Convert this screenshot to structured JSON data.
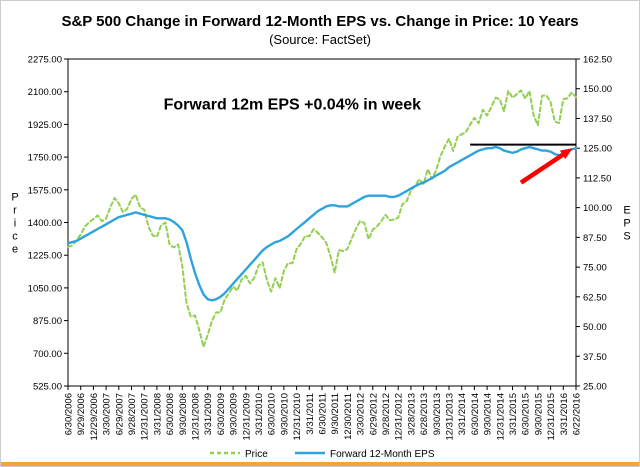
{
  "title": "S&P 500 Change in Forward 12-Month EPS vs. Change in Price: 10 Years",
  "subtitle": "(Source: FactSet)",
  "colors": {
    "price_line": "#92D050",
    "eps_line": "#2EA3DC",
    "annotation_red": "#FF0000",
    "flat_line_black": "#000000",
    "bottom_accent": "#f2a33c"
  },
  "chart_data": {
    "type": "line",
    "title": "S&P 500 Change in Forward 12-Month EPS vs. Change in Price: 10 Years",
    "subtitle": "(Source: FactSet)",
    "grid": false,
    "legend_position": "bottom",
    "left_axis": {
      "label": "Price",
      "min": 525,
      "max": 2275,
      "step": 175
    },
    "right_axis": {
      "label": "EPS",
      "min": 25,
      "max": 162.5,
      "step": 12.5
    },
    "x_tick_labels": [
      "6/30/2006",
      "9/29/2006",
      "12/29/2006",
      "3/30/2007",
      "6/29/2007",
      "9/28/2007",
      "12/31/2007",
      "3/31/2008",
      "6/30/2008",
      "9/30/2008",
      "12/31/2008",
      "3/31/2009",
      "6/30/2009",
      "9/30/2009",
      "12/31/2009",
      "3/31/2010",
      "6/30/2010",
      "9/30/2010",
      "12/31/2010",
      "3/31/2011",
      "6/30/2011",
      "9/30/2011",
      "12/30/2011",
      "3/30/2012",
      "6/29/2012",
      "9/28/2012",
      "12/31/2012",
      "3/28/2013",
      "6/28/2013",
      "9/30/2013",
      "12/31/2013",
      "3/31/2014",
      "6/30/2014",
      "9/30/2014",
      "12/31/2014",
      "3/31/2015",
      "6/30/2015",
      "9/30/2015",
      "12/31/2015",
      "3/31/2016",
      "6/22/2016"
    ],
    "series": [
      {
        "name": "Price",
        "axis": "left",
        "color": "#92D050",
        "dash": "4 3",
        "width": 2,
        "values": [
          1270,
          1277,
          1304,
          1336,
          1378,
          1401,
          1418,
          1438,
          1407,
          1421,
          1482,
          1531,
          1503,
          1455,
          1474,
          1527,
          1549,
          1481,
          1468,
          1379,
          1331,
          1323,
          1386,
          1400,
          1280,
          1267,
          1283,
          1166,
          969,
          896,
          903,
          826,
          735,
          798,
          873,
          919,
          919,
          987,
          1021,
          1057,
          1036,
          1096,
          1115,
          1074,
          1104,
          1169,
          1187,
          1089,
          1031,
          1102,
          1049,
          1141,
          1183,
          1181,
          1258,
          1286,
          1327,
          1326,
          1364,
          1345,
          1321,
          1292,
          1219,
          1131,
          1253,
          1247,
          1258,
          1312,
          1366,
          1408,
          1398,
          1310,
          1362,
          1379,
          1407,
          1441,
          1412,
          1416,
          1426,
          1498,
          1515,
          1569,
          1598,
          1631,
          1606,
          1686,
          1633,
          1682,
          1757,
          1806,
          1848,
          1783,
          1859,
          1872,
          1884,
          1924,
          1960,
          1931,
          2003,
          1972,
          2018,
          2068,
          2059,
          1995,
          2105,
          2068,
          2086,
          2107,
          2063,
          2104,
          1972,
          1920,
          2079,
          2080,
          2044,
          1940,
          1932,
          2060,
          2065,
          2097,
          2071
        ]
      },
      {
        "name": "Forward 12-Month EPS",
        "axis": "right",
        "color": "#2EA3DC",
        "dash": null,
        "width": 2.4,
        "values": [
          85,
          85.5,
          86,
          87,
          88,
          89,
          90,
          91,
          92,
          93,
          94,
          95,
          96,
          96.5,
          97,
          97.5,
          98,
          97.5,
          97,
          96.5,
          96,
          95.5,
          95.5,
          95.5,
          95,
          94,
          92.5,
          90.5,
          85.5,
          78.5,
          72.5,
          67.5,
          63.5,
          61.5,
          61,
          61.5,
          62.5,
          64,
          66,
          68,
          70,
          72,
          74,
          76,
          78,
          80,
          82,
          83.5,
          84.5,
          85.5,
          86,
          87,
          88,
          89.5,
          91,
          92.5,
          94,
          95.5,
          97,
          98.5,
          99.5,
          100.5,
          101,
          101,
          100.5,
          100.5,
          100.5,
          101.5,
          102.5,
          103.5,
          104.5,
          105,
          105,
          105,
          105,
          105,
          104.5,
          104.5,
          105,
          106,
          107,
          108,
          109,
          110,
          110.5,
          111.5,
          112.5,
          113.5,
          114.5,
          115.5,
          117,
          118,
          119,
          120,
          121,
          122,
          123,
          124,
          124.5,
          125,
          125,
          125.5,
          125,
          124,
          123.5,
          123,
          123.5,
          124.5,
          125,
          125.5,
          125,
          124.5,
          124,
          124,
          123.5,
          122.5,
          122,
          122.5,
          123.5,
          124.5,
          125
        ]
      }
    ],
    "annotations": {
      "label": {
        "type": "text",
        "text": "Forward 12m EPS +0.04% in week",
        "color": "#FF0000",
        "axis": "left",
        "x_index": 53,
        "y_value": 2005
      },
      "flat_line": {
        "type": "hline",
        "axis": "right",
        "value": 126.5,
        "from_index": 95,
        "to_index": 120,
        "color": "#000000"
      },
      "arrow": {
        "type": "arrow",
        "axis": "right",
        "from": [
          107,
          110.5
        ],
        "to": [
          119.2,
          125.0
        ],
        "color": "#FF0000"
      }
    }
  }
}
